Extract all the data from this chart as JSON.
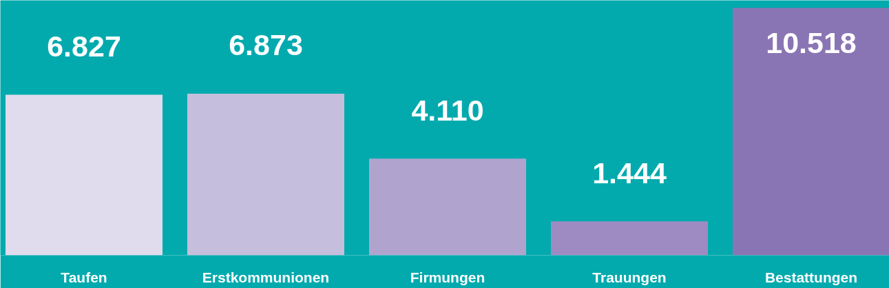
{
  "chart_data": {
    "type": "bar",
    "categories": [
      "Taufen",
      "Erstkommunionen",
      "Firmungen",
      "Trauungen",
      "Bestattungen"
    ],
    "values": [
      6827,
      6873,
      4110,
      1444,
      10518
    ],
    "colors": [
      "#e0dbed",
      "#c6bedd",
      "#b0a4cf",
      "#9e8bc2",
      "#8a75b4"
    ],
    "value_labels": [
      "6.827",
      "6.873",
      "4.110",
      "1.444",
      "10.518"
    ],
    "grid": false
  }
}
